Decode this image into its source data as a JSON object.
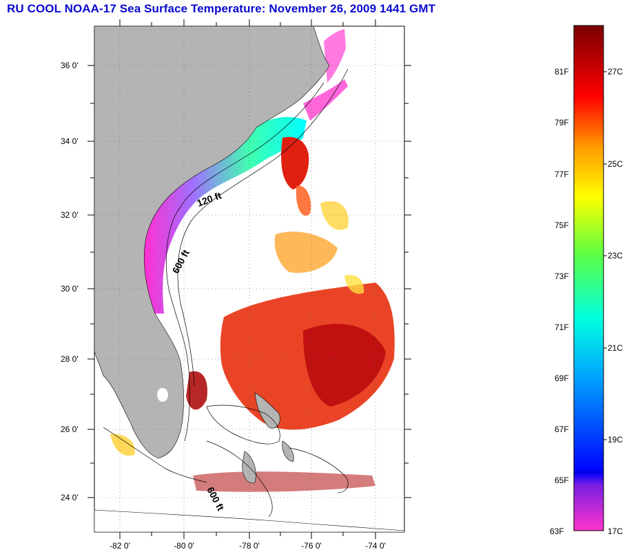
{
  "title": "RU COOL  NOAA-17  Sea Surface Temperature:  November 26, 2009 1441 GMT",
  "map": {
    "lat_labels": [
      "36 0'",
      "34 0'",
      "32 0'",
      "30 0'",
      "28 0'",
      "26 0'",
      "24 0'"
    ],
    "lon_labels": [
      "-82 0'",
      "-80 0'",
      "-78 0'",
      "-76 0'",
      "-74 0'"
    ],
    "contour_labels": [
      "120 ft",
      "600 ft",
      "600 ft"
    ],
    "colors": {
      "land": "#b4b4b4",
      "ocean_cloud": "#ffffff"
    }
  },
  "colorbar": {
    "fahrenheit": [
      "81F",
      "79F",
      "77F",
      "75F",
      "73F",
      "71F",
      "69F",
      "67F",
      "65F",
      "63F"
    ],
    "celsius": [
      "27C",
      "25C",
      "23C",
      "21C",
      "19C",
      "17C"
    ]
  }
}
